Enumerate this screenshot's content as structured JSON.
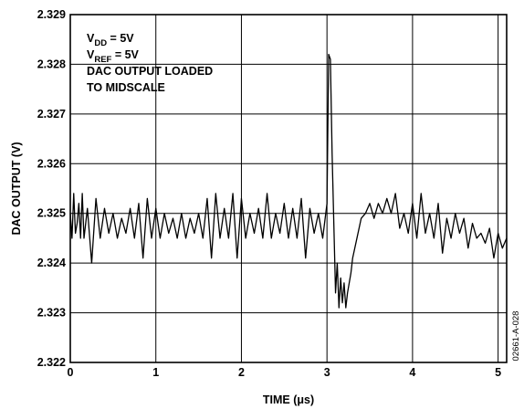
{
  "chart_data": {
    "type": "line",
    "xlabel_parts": [
      "TIME (",
      "μ",
      "s)"
    ],
    "ylabel": "DAC OUTPUT (V)",
    "xlim": [
      0,
      5.1
    ],
    "ylim": [
      2.322,
      2.329
    ],
    "x_ticks": [
      0,
      1,
      2,
      3,
      4,
      5
    ],
    "x_tick_labels": [
      "0",
      "1",
      "2",
      "3",
      "4",
      "5"
    ],
    "y_ticks": [
      2.322,
      2.323,
      2.324,
      2.325,
      2.326,
      2.327,
      2.328,
      2.329
    ],
    "y_tick_labels": [
      "2.322",
      "2.323",
      "2.324",
      "2.325",
      "2.326",
      "2.327",
      "2.328",
      "2.329"
    ],
    "grid": true,
    "annotations": [
      {
        "main": "V",
        "sub": "DD",
        "rest": " = 5V"
      },
      {
        "main": "V",
        "sub": "REF",
        "rest": " = 5V"
      },
      {
        "main": "DAC OUTPUT LOADED",
        "sub": "",
        "rest": ""
      },
      {
        "main": "TO MIDSCALE",
        "sub": "",
        "rest": ""
      }
    ],
    "figure_id": "02661-A-028",
    "line_color": "#000000",
    "series": [
      {
        "x": [
          0.0,
          0.02,
          0.04,
          0.06,
          0.08,
          0.1,
          0.12,
          0.14,
          0.16,
          0.18,
          0.2,
          0.25,
          0.3,
          0.35,
          0.4,
          0.45,
          0.5,
          0.55,
          0.6,
          0.65,
          0.7,
          0.75,
          0.8,
          0.85,
          0.9,
          0.95,
          1.0,
          1.05,
          1.1,
          1.15,
          1.2,
          1.25,
          1.3,
          1.35,
          1.4,
          1.45,
          1.5,
          1.55,
          1.6,
          1.65,
          1.7,
          1.75,
          1.8,
          1.85,
          1.9,
          1.95,
          2.0,
          2.05,
          2.1,
          2.15,
          2.2,
          2.25,
          2.3,
          2.35,
          2.4,
          2.45,
          2.5,
          2.55,
          2.6,
          2.65,
          2.7,
          2.75,
          2.8,
          2.85,
          2.9,
          2.95,
          3.0,
          3.02,
          3.04,
          3.06,
          3.08,
          3.1,
          3.12,
          3.14,
          3.16,
          3.18,
          3.2,
          3.22,
          3.24,
          3.26,
          3.28,
          3.3,
          3.35,
          3.4,
          3.45,
          3.5,
          3.55,
          3.6,
          3.65,
          3.7,
          3.75,
          3.8,
          3.85,
          3.9,
          3.95,
          4.0,
          4.05,
          4.1,
          4.15,
          4.2,
          4.25,
          4.3,
          4.35,
          4.4,
          4.45,
          4.5,
          4.55,
          4.6,
          4.65,
          4.7,
          4.75,
          4.8,
          4.85,
          4.9,
          4.95,
          5.0,
          5.05,
          5.1
        ],
        "y": [
          2.325,
          2.3245,
          2.3254,
          2.3246,
          2.3248,
          2.3252,
          2.3245,
          2.3254,
          2.3245,
          2.3248,
          2.3251,
          2.324,
          2.3253,
          2.3245,
          2.3251,
          2.3246,
          2.325,
          2.3245,
          2.3249,
          2.3246,
          2.3251,
          2.3245,
          2.3252,
          2.3241,
          2.3253,
          2.3245,
          2.3251,
          2.3245,
          2.325,
          2.3246,
          2.3249,
          2.3245,
          2.325,
          2.3245,
          2.3249,
          2.3246,
          2.325,
          2.3245,
          2.3253,
          2.3241,
          2.3254,
          2.3245,
          2.3251,
          2.3245,
          2.3254,
          2.3241,
          2.3253,
          2.3245,
          2.325,
          2.3246,
          2.3251,
          2.3245,
          2.3254,
          2.3245,
          2.325,
          2.3246,
          2.3252,
          2.3245,
          2.3251,
          2.3245,
          2.3253,
          2.3241,
          2.3251,
          2.3246,
          2.325,
          2.3245,
          2.3252,
          2.3282,
          2.3281,
          2.3262,
          2.3248,
          2.3234,
          2.324,
          2.3231,
          2.3237,
          2.3232,
          2.3236,
          2.3231,
          2.3234,
          2.3236,
          2.3238,
          2.3241,
          2.3245,
          2.3249,
          2.325,
          2.3252,
          2.3249,
          2.3252,
          2.325,
          2.3253,
          2.325,
          2.3254,
          2.3247,
          2.325,
          2.3246,
          2.3252,
          2.3245,
          2.3254,
          2.3246,
          2.325,
          2.3245,
          2.3252,
          2.3242,
          2.3249,
          2.3245,
          2.325,
          2.3246,
          2.3249,
          2.3243,
          2.3248,
          2.3245,
          2.3246,
          2.3244,
          2.3247,
          2.3241,
          2.3246,
          2.3243,
          2.3245
        ]
      }
    ]
  }
}
